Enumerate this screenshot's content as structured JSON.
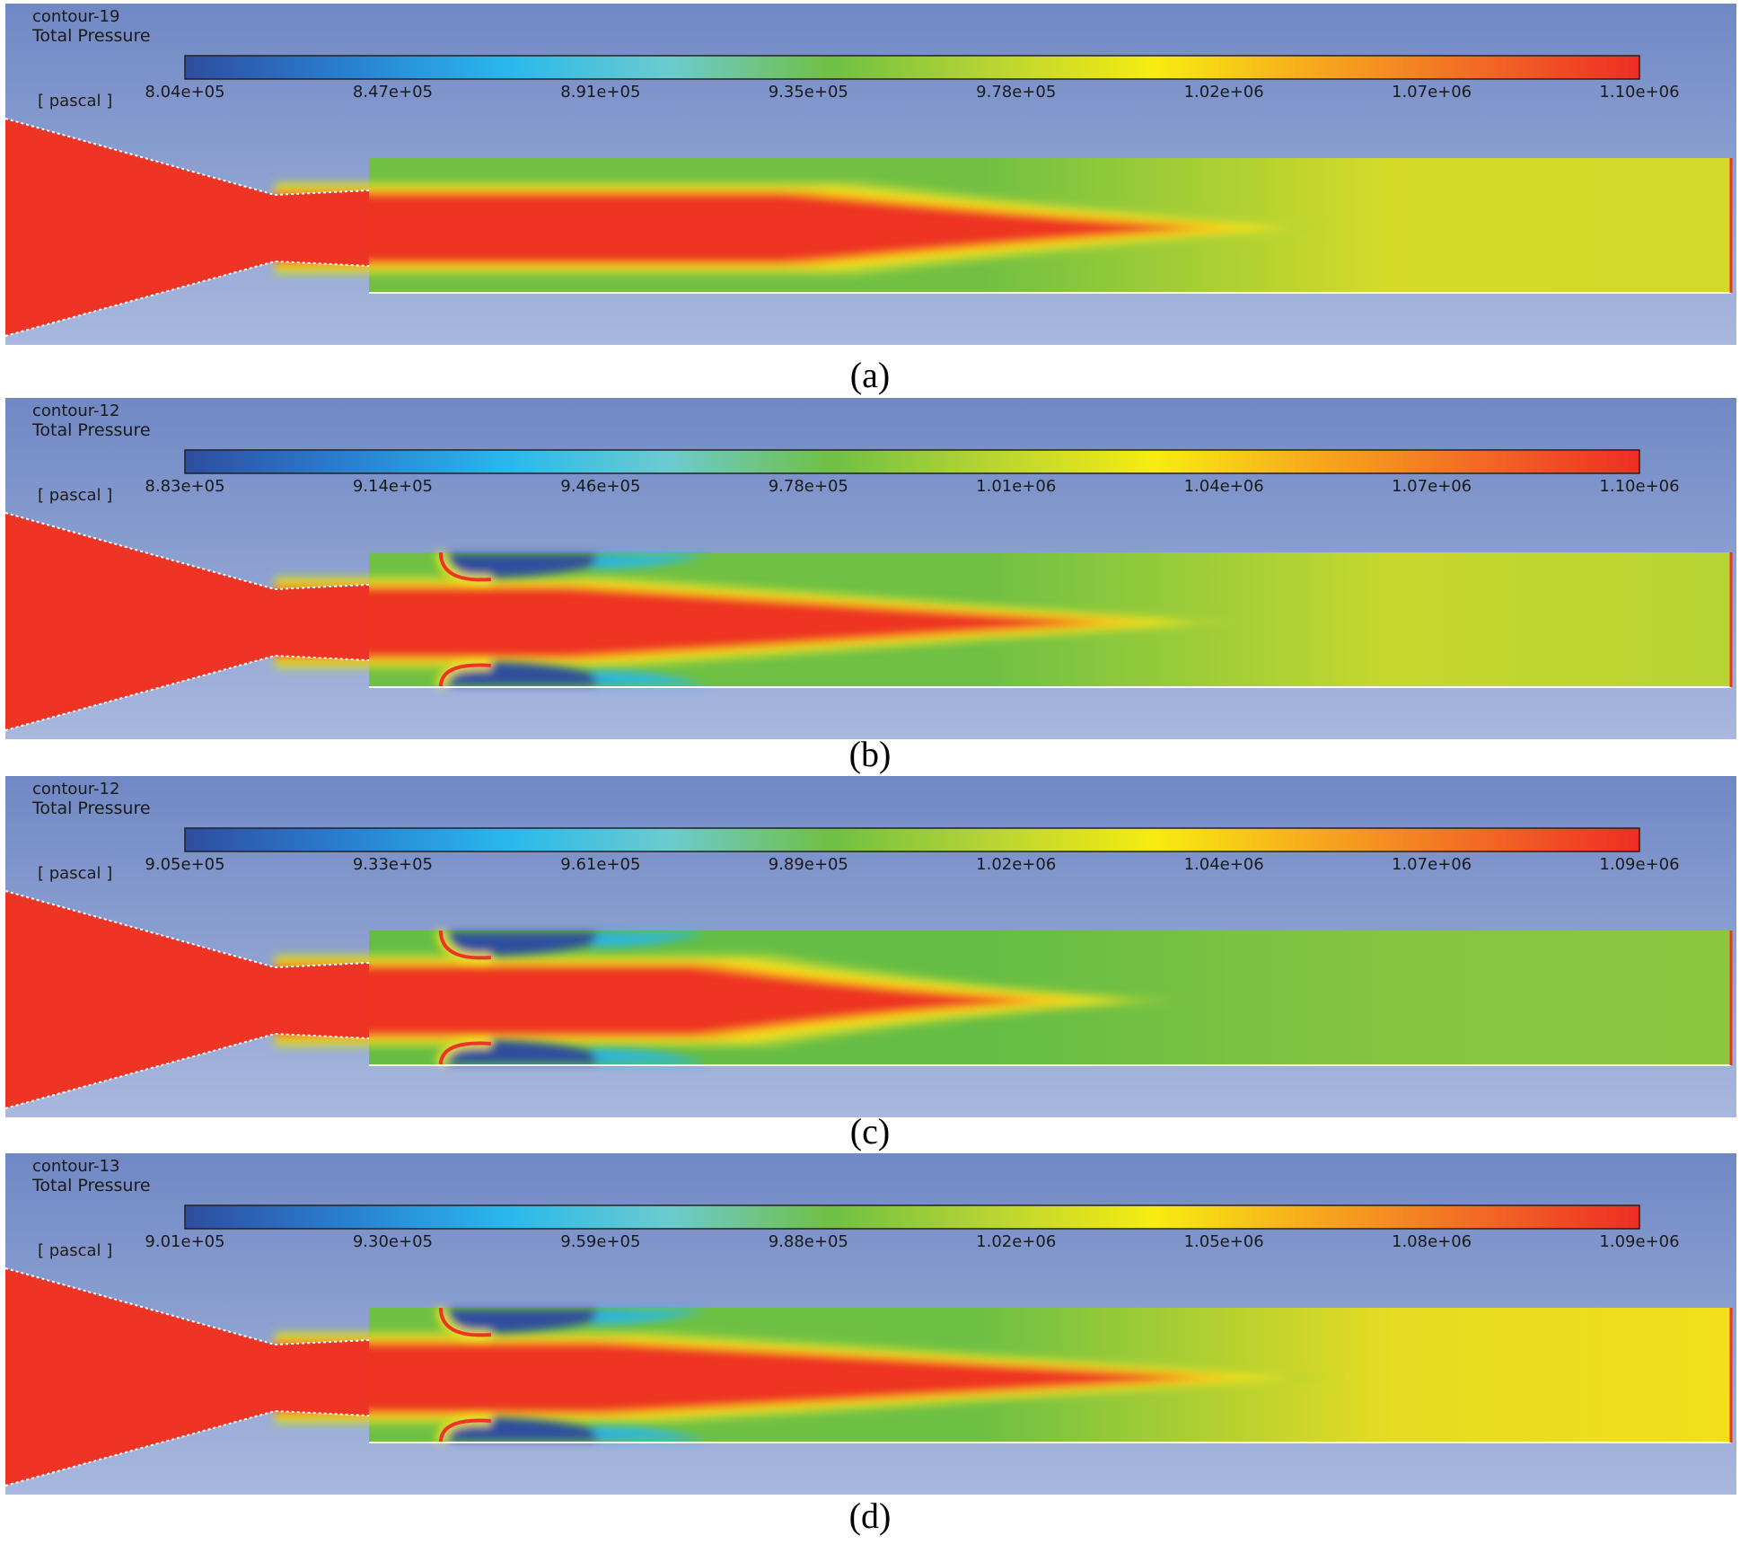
{
  "panels": [
    {
      "caption": "(a)",
      "contour_name": "contour-19",
      "variable": "Total Pressure",
      "unit": "[ pascal ]",
      "ticks": [
        "8.04e+05",
        "8.47e+05",
        "8.91e+05",
        "9.35e+05",
        "9.78e+05",
        "1.02e+06",
        "1.07e+06",
        "1.10e+06"
      ],
      "secondary_injectors": false,
      "secondary_injector_position": 0,
      "core_length_fraction": 0.62,
      "core_taper": "sharp",
      "annulus_color": "#71c043",
      "outlet_color": "#d3da2a",
      "far_field_color": "#d7db28"
    },
    {
      "caption": "(b)",
      "contour_name": "contour-12",
      "variable": "Total Pressure",
      "unit": "[ pascal ]",
      "ticks": [
        "8.83e+05",
        "9.14e+05",
        "9.46e+05",
        "9.78e+05",
        "1.01e+06",
        "1.04e+06",
        "1.07e+06",
        "1.10e+06"
      ],
      "secondary_injectors": true,
      "secondary_injector_position": 0.05,
      "core_length_fraction": 0.55,
      "core_taper": "gradual",
      "annulus_color": "#6fc044",
      "outlet_color": "#b7d434",
      "far_field_color": "#c6d82e"
    },
    {
      "caption": "(c)",
      "contour_name": "contour-12",
      "variable": "Total Pressure",
      "unit": "[ pascal ]",
      "ticks": [
        "9.05e+05",
        "9.33e+05",
        "9.61e+05",
        "9.89e+05",
        "1.02e+06",
        "1.04e+06",
        "1.07e+06",
        "1.09e+06"
      ],
      "secondary_injectors": true,
      "secondary_injector_position": 0.05,
      "core_length_fraction": 0.5,
      "core_taper": "sharp",
      "annulus_color": "#65bd45",
      "outlet_color": "#8cc63f",
      "far_field_color": "#86c540"
    },
    {
      "caption": "(d)",
      "contour_name": "contour-13",
      "variable": "Total Pressure",
      "unit": "[ pascal ]",
      "ticks": [
        "9.01e+05",
        "9.30e+05",
        "9.59e+05",
        "9.88e+05",
        "1.02e+06",
        "1.05e+06",
        "1.08e+06",
        "1.09e+06"
      ],
      "secondary_injectors": true,
      "secondary_injector_position": 0.05,
      "core_length_fraction": 0.62,
      "core_taper": "gradual",
      "annulus_color": "#6ec044",
      "outlet_color": "#f2df1a",
      "far_field_color": "#e6dc22"
    }
  ],
  "colormap": [
    "#2e4d9e",
    "#2a7fd0",
    "#29b8ec",
    "#6ccbd0",
    "#6fc044",
    "#b9d532",
    "#f7ec10",
    "#f7a81e",
    "#f26a24",
    "#ee2d24"
  ],
  "colors": {
    "background_top": "#7088c4",
    "background_bottom": "#a8b8de",
    "domain_red": "#ee3424",
    "wall": "#ffffff"
  }
}
